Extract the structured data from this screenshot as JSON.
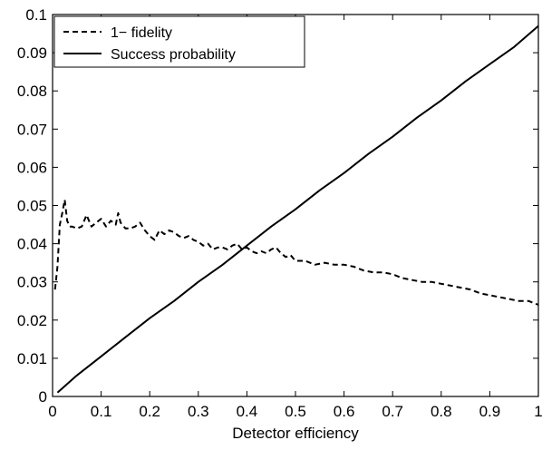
{
  "chart_data": {
    "type": "line",
    "title": "",
    "xlabel": "Detector efficiency",
    "ylabel": "",
    "xlim": [
      0,
      1
    ],
    "ylim": [
      0,
      0.1
    ],
    "xticks": [
      0,
      0.1,
      0.2,
      0.3,
      0.4,
      0.5,
      0.6,
      0.7,
      0.8,
      0.9,
      1
    ],
    "xtick_labels": [
      "0",
      "0.1",
      "0.2",
      "0.3",
      "0.4",
      "0.5",
      "0.6",
      "0.7",
      "0.8",
      "0.9",
      "1"
    ],
    "yticks": [
      0,
      0.01,
      0.02,
      0.03,
      0.04,
      0.05,
      0.06,
      0.07,
      0.08,
      0.09,
      0.1
    ],
    "ytick_labels": [
      "0",
      "0.01",
      "0.02",
      "0.03",
      "0.04",
      "0.05",
      "0.06",
      "0.07",
      "0.08",
      "0.09",
      "0.1"
    ],
    "grid": false,
    "legend_position": "top-left",
    "series": [
      {
        "name": "1− fidelity",
        "line_style": "dashed",
        "color": "#000000",
        "x": [
          0.005,
          0.01,
          0.015,
          0.02,
          0.025,
          0.03,
          0.035,
          0.04,
          0.05,
          0.06,
          0.07,
          0.08,
          0.09,
          0.1,
          0.11,
          0.12,
          0.13,
          0.135,
          0.14,
          0.15,
          0.16,
          0.17,
          0.18,
          0.19,
          0.2,
          0.21,
          0.22,
          0.23,
          0.24,
          0.25,
          0.26,
          0.27,
          0.28,
          0.29,
          0.3,
          0.31,
          0.32,
          0.33,
          0.34,
          0.35,
          0.36,
          0.37,
          0.38,
          0.39,
          0.4,
          0.41,
          0.42,
          0.43,
          0.44,
          0.45,
          0.46,
          0.47,
          0.48,
          0.49,
          0.5,
          0.52,
          0.54,
          0.56,
          0.58,
          0.6,
          0.62,
          0.64,
          0.66,
          0.68,
          0.7,
          0.72,
          0.74,
          0.76,
          0.78,
          0.8,
          0.82,
          0.84,
          0.86,
          0.88,
          0.9,
          0.92,
          0.94,
          0.96,
          0.98,
          1.0
        ],
        "y": [
          0.028,
          0.034,
          0.045,
          0.048,
          0.0515,
          0.046,
          0.0445,
          0.0445,
          0.044,
          0.0445,
          0.0475,
          0.0445,
          0.0455,
          0.0465,
          0.0445,
          0.046,
          0.045,
          0.048,
          0.0455,
          0.044,
          0.044,
          0.0445,
          0.0455,
          0.0435,
          0.042,
          0.041,
          0.0435,
          0.0425,
          0.0435,
          0.043,
          0.042,
          0.0415,
          0.042,
          0.041,
          0.0405,
          0.0395,
          0.04,
          0.0385,
          0.039,
          0.039,
          0.0385,
          0.0395,
          0.04,
          0.0385,
          0.039,
          0.038,
          0.0375,
          0.038,
          0.0375,
          0.0385,
          0.039,
          0.0375,
          0.0365,
          0.037,
          0.0355,
          0.0355,
          0.0345,
          0.035,
          0.0345,
          0.0345,
          0.034,
          0.033,
          0.0325,
          0.0325,
          0.032,
          0.031,
          0.0305,
          0.03,
          0.03,
          0.0295,
          0.029,
          0.0285,
          0.028,
          0.027,
          0.0265,
          0.026,
          0.0255,
          0.025,
          0.025,
          0.024
        ]
      },
      {
        "name": "Success probability",
        "line_style": "solid",
        "color": "#000000",
        "x": [
          0.01,
          0.05,
          0.1,
          0.15,
          0.2,
          0.25,
          0.3,
          0.35,
          0.4,
          0.45,
          0.5,
          0.55,
          0.6,
          0.65,
          0.7,
          0.75,
          0.8,
          0.85,
          0.9,
          0.95,
          1.0
        ],
        "y": [
          0.001,
          0.0055,
          0.0105,
          0.0155,
          0.0205,
          0.025,
          0.03,
          0.0345,
          0.0395,
          0.0445,
          0.049,
          0.054,
          0.0585,
          0.0635,
          0.068,
          0.073,
          0.0775,
          0.0825,
          0.087,
          0.0915,
          0.097
        ]
      }
    ]
  }
}
